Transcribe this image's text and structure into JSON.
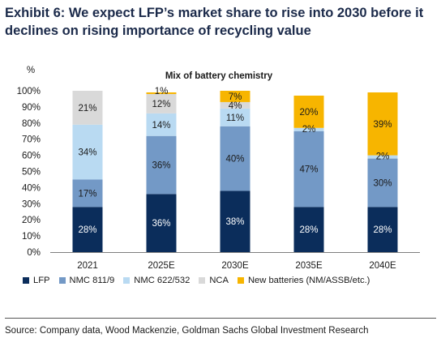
{
  "header": {
    "title_line1": "Exhibit 6: We expect LFP’s market share to rise into 2030 before it",
    "title_line2": "declines on rising importance of recycling value"
  },
  "chart_data": {
    "type": "bar",
    "stacked": true,
    "title": "Mix of battery chemistry",
    "ylabel": "%",
    "ylim": [
      0,
      100
    ],
    "yticks": [
      "0%",
      "10%",
      "20%",
      "30%",
      "40%",
      "50%",
      "60%",
      "70%",
      "80%",
      "90%",
      "100%"
    ],
    "categories": [
      "2021",
      "2025E",
      "2030E",
      "2035E",
      "2040E"
    ],
    "series": [
      {
        "name": "LFP",
        "color": "#0b2d5b",
        "label_color": "#ffffff",
        "values": [
          28,
          36,
          38,
          28,
          28
        ],
        "labels": [
          "28%",
          "36%",
          "38%",
          "28%",
          "28%"
        ]
      },
      {
        "name": "NMC 811/9",
        "color": "#7399c6",
        "label_color": "#1a1a1a",
        "values": [
          17,
          36,
          40,
          47,
          30
        ],
        "labels": [
          "17%",
          "36%",
          "40%",
          "47%",
          "30%"
        ]
      },
      {
        "name": "NMC 622/532",
        "color": "#b9daf2",
        "label_color": "#1a1a1a",
        "values": [
          34,
          14,
          11,
          2,
          2
        ],
        "labels": [
          "34%",
          "14%",
          "11%",
          "2%",
          "2%"
        ]
      },
      {
        "name": "NCA",
        "color": "#d9d9d9",
        "label_color": "#1a1a1a",
        "values": [
          21,
          12,
          4,
          0,
          0
        ],
        "labels": [
          "21%",
          "12%",
          "4%",
          "",
          ""
        ]
      },
      {
        "name": "New batteries (NM/ASSB/etc.)",
        "color": "#f7b500",
        "label_color": "#1a1a1a",
        "values": [
          0,
          1,
          7,
          20,
          39
        ],
        "labels": [
          "",
          "1%",
          "7%",
          "20%",
          "39%"
        ]
      }
    ],
    "grid": false,
    "legend_position": "bottom"
  },
  "footer": {
    "source": "Source: Company data, Wood Mackenzie, Goldman Sachs Global Investment Research"
  }
}
